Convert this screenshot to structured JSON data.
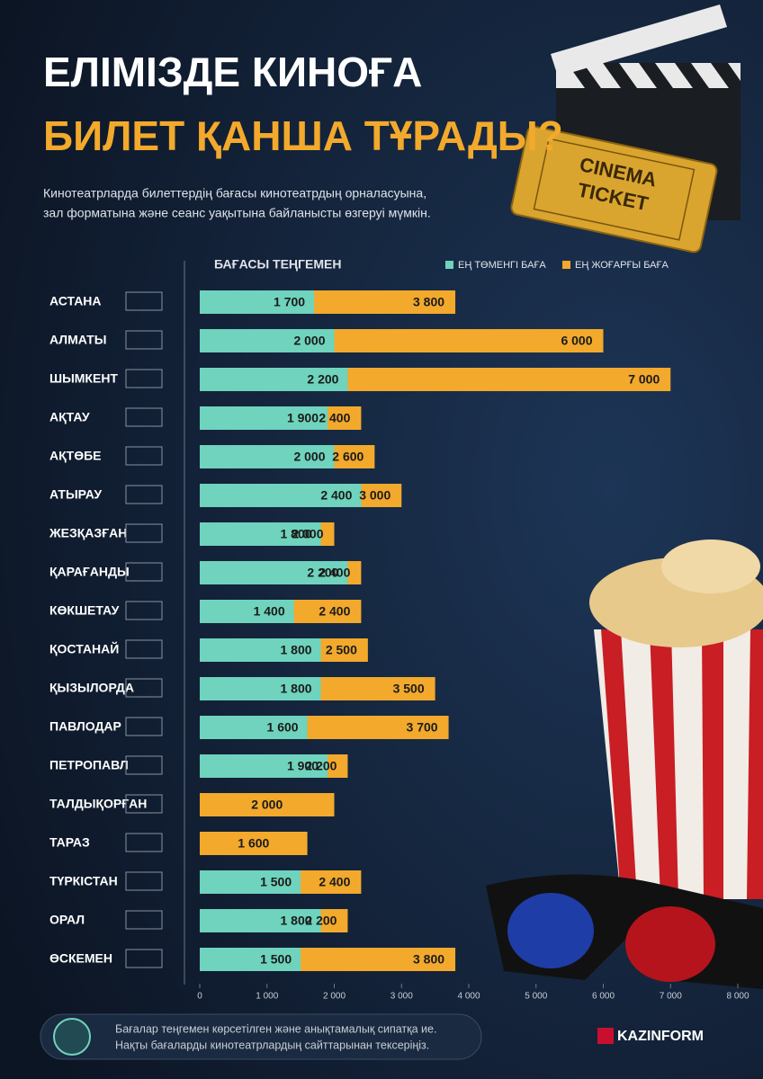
{
  "chart_data": {
    "type": "bar",
    "title": "ЕЛІМІЗДЕ КИНОҒА",
    "title_line2": "БИЛЕТ ҚАНША ТҰРАДЫ?",
    "subtitle": [
      "Кинотеатрларда билеттердің бағасы кинотеатрдың орналасуына,",
      "зал форматына және сеанс уақытына байланысты өзгеруі мүмкін."
    ],
    "axis_label": "БАҒАСЫ ТЕҢГЕМЕН",
    "categories": [
      "АСТАНА",
      "АЛМАТЫ",
      "ШЫМКЕНТ",
      "АҚТАУ",
      "АҚТӨБЕ",
      "АТЫРАУ",
      "ЖЕЗҚАЗҒАН",
      "ҚАРАҒАНДЫ",
      "КӨКШЕТАУ",
      "ҚОСТАНАЙ",
      "ҚЫЗЫЛОРДА",
      "ПАВЛОДАР",
      "ПЕТРОПАВЛ",
      "ТАЛДЫҚОРҒАН",
      "ТАРАЗ",
      "ТҮРКІСТАН",
      "ОРАЛ",
      "ӨСКЕМЕН"
    ],
    "series": [
      {
        "name": "ЕҢ ТӨМЕНГІ БАҒА",
        "color": "#6fd3bd",
        "values": [
          1700,
          2000,
          2200,
          1900,
          2000,
          2400,
          1800,
          2200,
          1400,
          1800,
          1800,
          1600,
          1900,
          null,
          null,
          1500,
          1800,
          1500
        ],
        "value_labels": [
          "1 700",
          "2 000",
          "2 200",
          "1 900",
          "2 000",
          "2 400",
          "1 800",
          "2 200",
          "1 400",
          "1 800",
          "1 800",
          "1 600",
          "1 900",
          null,
          null,
          "1 500",
          "1 800",
          "1 500"
        ]
      },
      {
        "name": "ЕҢ ЖОҒАРҒЫ БАҒА",
        "color": "#f2a92c",
        "values": [
          3800,
          6000,
          7000,
          2400,
          2600,
          3000,
          2000,
          2400,
          2400,
          2500,
          3500,
          3700,
          2200,
          2000,
          1600,
          2400,
          2200,
          3800
        ],
        "value_labels": [
          "3 800",
          "6 000",
          "7 000",
          "2 400",
          "2 600",
          "3 000",
          "2 000",
          "2 400",
          "2 400",
          "2 500",
          "3 500",
          "3 700",
          "2 200",
          "2 000",
          "1 600",
          "2 400",
          "2 200",
          "3 800"
        ]
      }
    ],
    "xlim": [
      0,
      8000
    ],
    "xticks": [
      0,
      {
        "value": 1000,
        "label": "1 000"
      },
      {
        "value": 2000,
        "label": "2 000"
      },
      {
        "value": 3000,
        "label": "3 000"
      },
      {
        "value": 4000,
        "label": "4 000"
      },
      {
        "value": 5000,
        "label": "5 000"
      },
      {
        "value": 6000,
        "label": "6 000"
      },
      {
        "value": 7000,
        "label": "7 000"
      },
      {
        "value": 8000,
        "label": "8 000"
      }
    ],
    "note": [
      "Бағалар теңгемен көрсетілген және анықтамалық сипатқа ие.",
      "Нақты бағаларды кинотеатрлардың сайттарынан тексеріңіз."
    ],
    "ticket_text": [
      "CINEMA",
      "TICKET"
    ],
    "brand": "KAZINFORM"
  }
}
